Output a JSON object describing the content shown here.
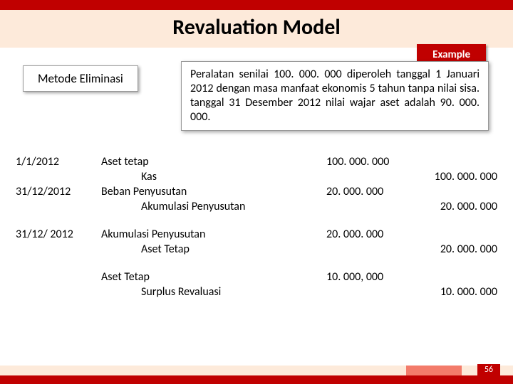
{
  "title": "Revaluation Model",
  "badge": "Example",
  "method": "Metode Eliminasi",
  "description": "Peralatan senilai 100. 000. 000 diperoleh tanggal 1 Januari 2012 dengan masa manfaat ekonomis 5 tahun tanpa nilai sisa. tanggal 31 Desember 2012 nilai wajar aset adalah 90. 000. 000.",
  "entries": [
    {
      "date": "1/1/2012",
      "account": "Aset tetap",
      "indent": 0,
      "debit": "100. 000. 000",
      "credit": ""
    },
    {
      "date": "",
      "account": "Kas",
      "indent": 1,
      "debit": "",
      "credit": "100. 000. 000"
    },
    {
      "date": "31/12/2012",
      "account": "Beban Penyusutan",
      "indent": 0,
      "debit": "20. 000. 000",
      "credit": ""
    },
    {
      "date": "",
      "account": "Akumulasi Penyusutan",
      "indent": 1,
      "debit": "",
      "credit": "20. 000. 000"
    }
  ],
  "entries2": [
    {
      "date": "31/12/ 2012",
      "account": "Akumulasi Penyusutan",
      "indent": 0,
      "debit": "20. 000. 000",
      "credit": ""
    },
    {
      "date": "",
      "account": "Aset Tetap",
      "indent": 1,
      "debit": "",
      "credit": "20. 000. 000"
    }
  ],
  "entries3": [
    {
      "date": "",
      "account": "Aset Tetap",
      "indent": 0,
      "debit": "10. 000, 000",
      "credit": ""
    },
    {
      "date": "",
      "account": "Surplus Revaluasi",
      "indent": 1,
      "debit": "",
      "credit": "10. 000. 000"
    }
  ],
  "page_number": "56",
  "colors": {
    "red": "#c00000",
    "peach": "#fdeada",
    "accent": "#f37b6a"
  }
}
